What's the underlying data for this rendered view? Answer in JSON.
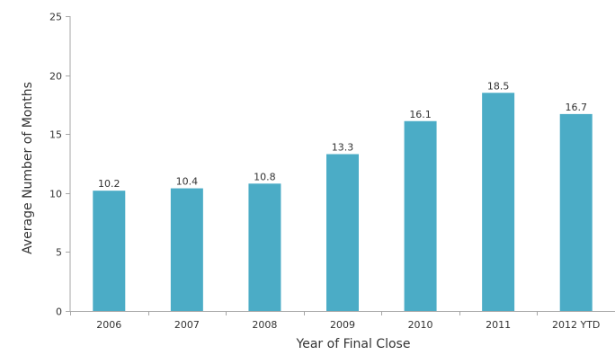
{
  "chart_data": {
    "type": "bar",
    "title": "",
    "xlabel": "Year of Final Close",
    "ylabel": "Average Number of Months",
    "categories": [
      "2006",
      "2007",
      "2008",
      "2009",
      "2010",
      "2011",
      "2012 YTD"
    ],
    "values": [
      10.2,
      10.4,
      10.8,
      13.3,
      16.1,
      18.5,
      16.7
    ],
    "data_labels": [
      "10.2",
      "10.4",
      "10.8",
      "13.3",
      "16.1",
      "18.5",
      "16.7"
    ],
    "ylim": [
      0,
      25
    ],
    "yticks": [
      0,
      5,
      10,
      15,
      20,
      25
    ],
    "grid": false,
    "legend": "none",
    "bar_color": "#4bacc6",
    "axis_color": "#a6a6a6"
  }
}
